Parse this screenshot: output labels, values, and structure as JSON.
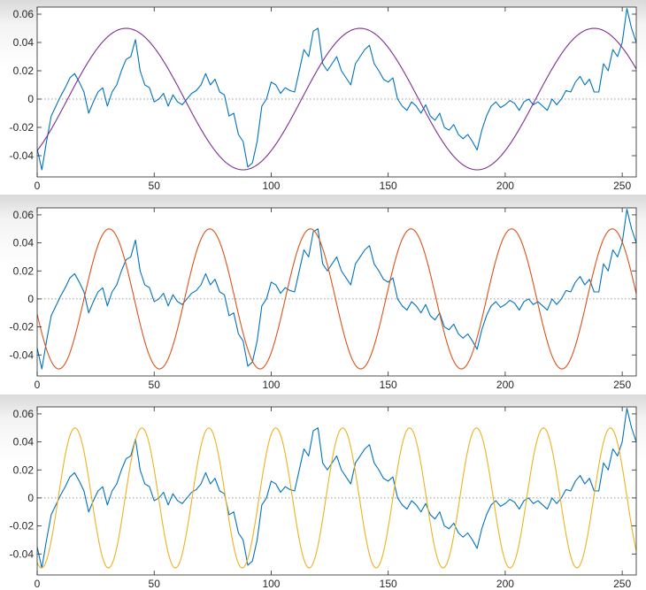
{
  "chart_data": [
    {
      "type": "line",
      "title": "",
      "xlabel": "",
      "ylabel": "",
      "xlim": [
        0,
        256
      ],
      "ylim": [
        -0.055,
        0.065
      ],
      "xticks": [
        0,
        50,
        100,
        150,
        200,
        250
      ],
      "yticks": [
        -0.04,
        -0.02,
        0,
        0.02,
        0.04,
        0.06
      ],
      "xtick_labels": [
        "0",
        "50",
        "100",
        "150",
        "200",
        "250"
      ],
      "ytick_labels": [
        "-0.04",
        "-0.02",
        "0",
        "0.02",
        "0.04",
        "0.06"
      ],
      "grid": false,
      "reference_line": {
        "y": 0,
        "style": "dotted",
        "color": "#9a9a9a"
      },
      "series": [
        {
          "color": "#0072bd",
          "x": [
            0,
            2,
            4,
            6,
            8,
            10,
            12,
            14,
            16,
            18,
            20,
            22,
            24,
            26,
            28,
            30,
            32,
            34,
            36,
            38,
            40,
            42,
            44,
            46,
            48,
            50,
            52,
            54,
            56,
            58,
            60,
            62,
            64,
            66,
            68,
            70,
            72,
            74,
            76,
            78,
            80,
            82,
            84,
            86,
            88,
            90,
            92,
            94,
            96,
            98,
            100,
            102,
            104,
            106,
            108,
            110,
            112,
            114,
            116,
            118,
            120,
            122,
            124,
            126,
            128,
            130,
            132,
            134,
            136,
            138,
            140,
            142,
            144,
            146,
            148,
            150,
            152,
            154,
            156,
            158,
            160,
            162,
            164,
            166,
            168,
            170,
            172,
            174,
            176,
            178,
            180,
            182,
            184,
            186,
            188,
            190,
            192,
            194,
            196,
            198,
            200,
            202,
            204,
            206,
            208,
            210,
            212,
            214,
            216,
            218,
            220,
            222,
            224,
            226,
            228,
            230,
            232,
            234,
            236,
            238,
            240,
            242,
            244,
            246,
            248,
            250,
            252,
            254,
            256
          ],
          "y": [
            -0.035,
            -0.05,
            -0.03,
            -0.012,
            -0.005,
            0.002,
            0.008,
            0.015,
            0.018,
            0.012,
            0.005,
            -0.01,
            -0.002,
            0.005,
            0.008,
            -0.005,
            0.005,
            0.01,
            0.02,
            0.028,
            0.03,
            0.042,
            0.02,
            0.01,
            0.008,
            -0.002,
            0.0,
            0.004,
            -0.005,
            0.003,
            -0.002,
            -0.004,
            0.0,
            0.004,
            0.006,
            0.01,
            0.018,
            0.01,
            0.014,
            0.005,
            0.003,
            -0.012,
            -0.01,
            -0.025,
            -0.03,
            -0.048,
            -0.045,
            -0.03,
            -0.005,
            0.0,
            0.012,
            0.01,
            0.004,
            0.008,
            0.006,
            0.005,
            0.02,
            0.035,
            0.03,
            0.048,
            0.05,
            0.025,
            0.02,
            0.025,
            0.03,
            0.02,
            0.015,
            0.01,
            0.025,
            0.03,
            0.035,
            0.038,
            0.025,
            0.02,
            0.014,
            0.012,
            0.015,
            0.0,
            -0.005,
            -0.008,
            -0.002,
            -0.005,
            -0.01,
            -0.004,
            -0.012,
            -0.015,
            -0.01,
            -0.02,
            -0.022,
            -0.018,
            -0.025,
            -0.028,
            -0.025,
            -0.03,
            -0.036,
            -0.022,
            -0.012,
            -0.005,
            -0.002,
            -0.006,
            -0.004,
            -0.001,
            -0.003,
            -0.008,
            -0.002,
            0.0,
            -0.004,
            -0.002,
            -0.005,
            -0.008,
            0.0,
            -0.004,
            0.0,
            0.006,
            0.005,
            0.012,
            0.016,
            0.01,
            0.014,
            0.005,
            0.005,
            0.025,
            0.02,
            0.035,
            0.03,
            0.04,
            0.064,
            0.05,
            0.04
          ]
        },
        {
          "color": "#7e2f8e",
          "function": "0.05 * sin(2 * pi * (x - 13) / 100)",
          "amplitude": 0.05,
          "period": 100,
          "phase_shift": 13
        }
      ]
    },
    {
      "type": "line",
      "title": "",
      "xlabel": "",
      "ylabel": "",
      "xlim": [
        0,
        256
      ],
      "ylim": [
        -0.055,
        0.065
      ],
      "xticks": [
        0,
        50,
        100,
        150,
        200,
        250
      ],
      "yticks": [
        -0.04,
        -0.02,
        0,
        0.02,
        0.04,
        0.06
      ],
      "xtick_labels": [
        "0",
        "50",
        "100",
        "150",
        "200",
        "250"
      ],
      "ytick_labels": [
        "-0.04",
        "-0.02",
        "0",
        "0.02",
        "0.04",
        "0.06"
      ],
      "grid": false,
      "reference_line": {
        "y": 0,
        "style": "dotted",
        "color": "#9a9a9a"
      },
      "series": [
        {
          "color": "#0072bd",
          "x": [
            0,
            2,
            4,
            6,
            8,
            10,
            12,
            14,
            16,
            18,
            20,
            22,
            24,
            26,
            28,
            30,
            32,
            34,
            36,
            38,
            40,
            42,
            44,
            46,
            48,
            50,
            52,
            54,
            56,
            58,
            60,
            62,
            64,
            66,
            68,
            70,
            72,
            74,
            76,
            78,
            80,
            82,
            84,
            86,
            88,
            90,
            92,
            94,
            96,
            98,
            100,
            102,
            104,
            106,
            108,
            110,
            112,
            114,
            116,
            118,
            120,
            122,
            124,
            126,
            128,
            130,
            132,
            134,
            136,
            138,
            140,
            142,
            144,
            146,
            148,
            150,
            152,
            154,
            156,
            158,
            160,
            162,
            164,
            166,
            168,
            170,
            172,
            174,
            176,
            178,
            180,
            182,
            184,
            186,
            188,
            190,
            192,
            194,
            196,
            198,
            200,
            202,
            204,
            206,
            208,
            210,
            212,
            214,
            216,
            218,
            220,
            222,
            224,
            226,
            228,
            230,
            232,
            234,
            236,
            238,
            240,
            242,
            244,
            246,
            248,
            250,
            252,
            254,
            256
          ],
          "y": [
            -0.035,
            -0.05,
            -0.03,
            -0.012,
            -0.005,
            0.002,
            0.008,
            0.015,
            0.018,
            0.012,
            0.005,
            -0.01,
            -0.002,
            0.005,
            0.008,
            -0.005,
            0.005,
            0.01,
            0.02,
            0.028,
            0.03,
            0.042,
            0.02,
            0.01,
            0.008,
            -0.002,
            0.0,
            0.004,
            -0.005,
            0.003,
            -0.002,
            -0.004,
            0.0,
            0.004,
            0.006,
            0.01,
            0.018,
            0.01,
            0.014,
            0.005,
            0.003,
            -0.012,
            -0.01,
            -0.025,
            -0.03,
            -0.048,
            -0.045,
            -0.03,
            -0.005,
            0.0,
            0.012,
            0.01,
            0.004,
            0.008,
            0.006,
            0.005,
            0.02,
            0.035,
            0.03,
            0.048,
            0.05,
            0.025,
            0.02,
            0.025,
            0.03,
            0.02,
            0.015,
            0.01,
            0.025,
            0.03,
            0.035,
            0.038,
            0.025,
            0.02,
            0.014,
            0.012,
            0.015,
            0.0,
            -0.005,
            -0.008,
            -0.002,
            -0.005,
            -0.01,
            -0.004,
            -0.012,
            -0.015,
            -0.01,
            -0.02,
            -0.022,
            -0.018,
            -0.025,
            -0.028,
            -0.025,
            -0.03,
            -0.036,
            -0.022,
            -0.012,
            -0.005,
            -0.002,
            -0.006,
            -0.004,
            -0.001,
            -0.003,
            -0.008,
            -0.002,
            0.0,
            -0.004,
            -0.002,
            -0.005,
            -0.008,
            0.0,
            -0.004,
            0.0,
            0.006,
            0.005,
            0.012,
            0.016,
            0.01,
            0.014,
            0.005,
            0.005,
            0.025,
            0.02,
            0.035,
            0.03,
            0.04,
            0.064,
            0.05,
            0.04
          ]
        },
        {
          "color": "#d95319",
          "function": "0.05 * sin(2 * pi * (x - 20) / 43)",
          "amplitude": 0.05,
          "period": 43,
          "phase_shift": 20
        }
      ]
    },
    {
      "type": "line",
      "title": "",
      "xlabel": "",
      "ylabel": "",
      "xlim": [
        0,
        256
      ],
      "ylim": [
        -0.055,
        0.065
      ],
      "xticks": [
        0,
        50,
        100,
        150,
        200,
        250
      ],
      "yticks": [
        -0.04,
        -0.02,
        0,
        0.02,
        0.04,
        0.06
      ],
      "xtick_labels": [
        "0",
        "50",
        "100",
        "150",
        "200",
        "250"
      ],
      "ytick_labels": [
        "-0.04",
        "-0.02",
        "0",
        "0.02",
        "0.04",
        "0.06"
      ],
      "grid": false,
      "reference_line": {
        "y": 0,
        "style": "dotted",
        "color": "#9a9a9a"
      },
      "series": [
        {
          "color": "#0072bd",
          "x": [
            0,
            2,
            4,
            6,
            8,
            10,
            12,
            14,
            16,
            18,
            20,
            22,
            24,
            26,
            28,
            30,
            32,
            34,
            36,
            38,
            40,
            42,
            44,
            46,
            48,
            50,
            52,
            54,
            56,
            58,
            60,
            62,
            64,
            66,
            68,
            70,
            72,
            74,
            76,
            78,
            80,
            82,
            84,
            86,
            88,
            90,
            92,
            94,
            96,
            98,
            100,
            102,
            104,
            106,
            108,
            110,
            112,
            114,
            116,
            118,
            120,
            122,
            124,
            126,
            128,
            130,
            132,
            134,
            136,
            138,
            140,
            142,
            144,
            146,
            148,
            150,
            152,
            154,
            156,
            158,
            160,
            162,
            164,
            166,
            168,
            170,
            172,
            174,
            176,
            178,
            180,
            182,
            184,
            186,
            188,
            190,
            192,
            194,
            196,
            198,
            200,
            202,
            204,
            206,
            208,
            210,
            212,
            214,
            216,
            218,
            220,
            222,
            224,
            226,
            228,
            230,
            232,
            234,
            236,
            238,
            240,
            242,
            244,
            246,
            248,
            250,
            252,
            254,
            256
          ],
          "y": [
            -0.035,
            -0.05,
            -0.03,
            -0.012,
            -0.005,
            0.002,
            0.008,
            0.015,
            0.018,
            0.012,
            0.005,
            -0.01,
            -0.002,
            0.005,
            0.008,
            -0.005,
            0.005,
            0.01,
            0.02,
            0.028,
            0.03,
            0.042,
            0.02,
            0.01,
            0.008,
            -0.002,
            0.0,
            0.004,
            -0.005,
            0.003,
            -0.002,
            -0.004,
            0.0,
            0.004,
            0.006,
            0.01,
            0.018,
            0.01,
            0.014,
            0.005,
            0.003,
            -0.012,
            -0.01,
            -0.025,
            -0.03,
            -0.048,
            -0.045,
            -0.03,
            -0.005,
            0.0,
            0.012,
            0.01,
            0.004,
            0.008,
            0.006,
            0.005,
            0.02,
            0.035,
            0.03,
            0.048,
            0.05,
            0.025,
            0.02,
            0.025,
            0.03,
            0.02,
            0.015,
            0.01,
            0.025,
            0.03,
            0.035,
            0.038,
            0.025,
            0.02,
            0.014,
            0.012,
            0.015,
            0.0,
            -0.005,
            -0.008,
            -0.002,
            -0.005,
            -0.01,
            -0.004,
            -0.012,
            -0.015,
            -0.01,
            -0.02,
            -0.022,
            -0.018,
            -0.025,
            -0.028,
            -0.025,
            -0.03,
            -0.036,
            -0.022,
            -0.012,
            -0.005,
            -0.002,
            -0.006,
            -0.004,
            -0.001,
            -0.003,
            -0.008,
            -0.002,
            0.0,
            -0.004,
            -0.002,
            -0.005,
            -0.008,
            0.0,
            -0.004,
            0.0,
            0.006,
            0.005,
            0.012,
            0.016,
            0.01,
            0.014,
            0.005,
            0.005,
            0.025,
            0.02,
            0.035,
            0.03,
            0.04,
            0.064,
            0.05,
            0.04
          ]
        },
        {
          "color": "#edb120",
          "function": "0.05 * sin(2 * pi * (x - 9) / 28.6)",
          "amplitude": 0.05,
          "period": 28.6,
          "phase_shift": 9
        }
      ]
    }
  ]
}
